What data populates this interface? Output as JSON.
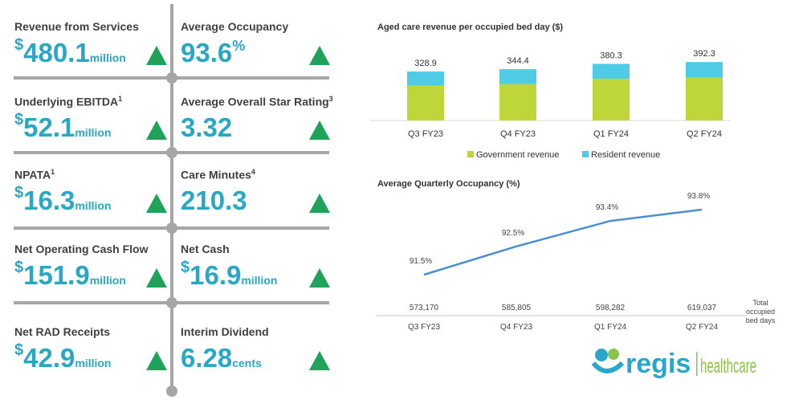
{
  "kpis": [
    {
      "title": "Revenue from Services",
      "sup": "",
      "prefix": "$",
      "value": "480.1",
      "suffix": "million",
      "trend": "up"
    },
    {
      "title": "Average Occupancy",
      "sup": "",
      "prefix": "",
      "value": "93.6",
      "suffix": "%",
      "trend": "up"
    },
    {
      "title": "Underlying EBITDA",
      "sup": "1",
      "prefix": "$",
      "value": "52.1",
      "suffix": "million",
      "trend": "up"
    },
    {
      "title": "Average Overall Star Rating",
      "sup": "3",
      "prefix": "",
      "value": "3.32",
      "suffix": "",
      "trend": "up"
    },
    {
      "title": "NPATA",
      "sup": "1",
      "prefix": "$",
      "value": "16.3",
      "suffix": "million",
      "trend": "up"
    },
    {
      "title": "Care Minutes",
      "sup": "4",
      "prefix": "",
      "value": "210.3",
      "suffix": "",
      "trend": "up"
    },
    {
      "title": "Net Operating Cash Flow",
      "sup": "",
      "prefix": "$",
      "value": "151.9",
      "suffix": "million",
      "trend": "up"
    },
    {
      "title": "Net Cash",
      "sup": "",
      "prefix": "$",
      "value": "16.9",
      "suffix": "million",
      "trend": "up"
    },
    {
      "title": "Net RAD Receipts",
      "sup": "",
      "prefix": "$",
      "value": "42.9",
      "suffix": "million",
      "trend": "up"
    },
    {
      "title": "Interim Dividend",
      "sup": "",
      "prefix": "",
      "value": "6.28",
      "suffix": "cents",
      "trend": "up"
    }
  ],
  "colors": {
    "kpi_value": "#29a7c4",
    "trend_up": "#1fa35a",
    "government": "#bed63a",
    "resident": "#4fcbe6",
    "line": "#4a90d0"
  },
  "chart_data": [
    {
      "type": "bar",
      "stacked": true,
      "title": "Aged care revenue per occupied bed day ($)",
      "categories": [
        "Q3 FY23",
        "Q4 FY23",
        "Q1 FY24",
        "Q2 FY24"
      ],
      "series": [
        {
          "name": "Government revenue",
          "values": [
            233,
            244,
            280,
            287
          ]
        },
        {
          "name": "Resident revenue",
          "values": [
            95.9,
            100.4,
            100.3,
            105.3
          ]
        }
      ],
      "totals": [
        "328.9",
        "344.4",
        "380.3",
        "392.3"
      ],
      "legend": "bottom"
    },
    {
      "type": "line",
      "title": "Average Quarterly Occupancy (%)",
      "categories": [
        "Q3 FY23",
        "Q4 FY23",
        "Q1 FY24",
        "Q2 FY24"
      ],
      "values": [
        91.5,
        92.5,
        93.4,
        93.8
      ],
      "labels": [
        "91.5%",
        "92.5%",
        "93.4%",
        "93.8%"
      ],
      "table_row": {
        "label": "Total occupied bed days",
        "values": [
          "573,170",
          "585,805",
          "598,282",
          "619,037"
        ]
      }
    }
  ],
  "logo": {
    "text": "regis|healthcare"
  }
}
